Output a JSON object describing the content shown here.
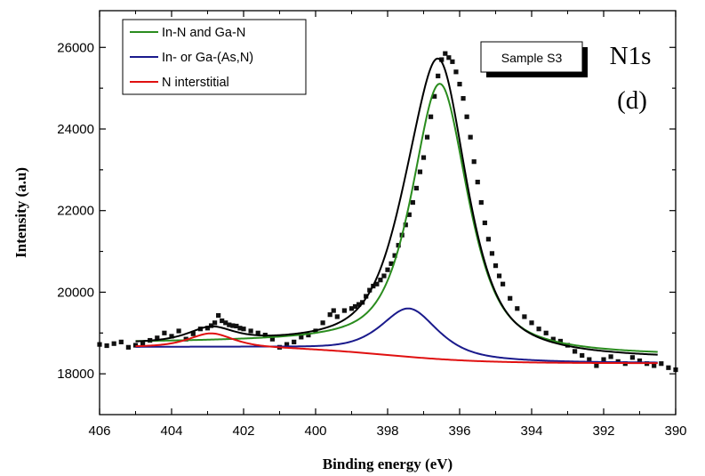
{
  "chart_data": {
    "type": "scatter",
    "title": "",
    "xlabel": "Binding energy (eV)",
    "ylabel": "Intensity (a.u)",
    "xlim": [
      406,
      390
    ],
    "ylim": [
      17000,
      26900
    ],
    "x_ticks": [
      406,
      404,
      402,
      400,
      398,
      396,
      394,
      392,
      390
    ],
    "y_ticks": [
      18000,
      20000,
      22000,
      24000,
      26000
    ],
    "x_reversed": true,
    "legend": {
      "position": "top-left",
      "entries": [
        {
          "label": "In-N and Ga-N",
          "color": "#2a8c1e"
        },
        {
          "label": "In- or Ga-(As,N)",
          "color": "#1a1a8c"
        },
        {
          "label": "N interstitial",
          "color": "#e01010"
        }
      ]
    },
    "annotations": {
      "sample_box": "Sample S3",
      "peak_label": "N1s",
      "panel_label": "(d)"
    },
    "fit_range": [
      405,
      390.5
    ],
    "background": {
      "left": 18650,
      "right": 18260,
      "center": 398.0,
      "width": 1.3
    },
    "series": [
      {
        "name": "In-N and Ga-N",
        "color": "#2a8c1e",
        "kind": "voigt",
        "center": 396.55,
        "height": 6600,
        "fwhm": 1.85,
        "base_extra_left": 100,
        "base_extra_right": 170
      },
      {
        "name": "In- or Ga-(As,N)",
        "color": "#1a1a8c",
        "kind": "voigt",
        "center": 397.4,
        "height": 1190,
        "fwhm": 1.9,
        "base_extra_left": 0,
        "base_extra_right": 0
      },
      {
        "name": "N interstitial",
        "color": "#e01010",
        "kind": "voigt",
        "center": 402.9,
        "height": 350,
        "fwhm": 1.5,
        "base_extra_left": 0,
        "base_extra_right": 0
      },
      {
        "name": "",
        "color": "#000000",
        "kind": "envelope"
      }
    ],
    "points_color": "#111111",
    "points": [
      [
        406.0,
        18720
      ],
      [
        405.8,
        18690
      ],
      [
        405.6,
        18740
      ],
      [
        405.4,
        18780
      ],
      [
        405.2,
        18650
      ],
      [
        405.0,
        18700
      ],
      [
        404.8,
        18750
      ],
      [
        404.6,
        18820
      ],
      [
        404.4,
        18880
      ],
      [
        404.2,
        19000
      ],
      [
        404.0,
        18920
      ],
      [
        403.8,
        19050
      ],
      [
        403.6,
        18850
      ],
      [
        403.4,
        18980
      ],
      [
        403.2,
        19100
      ],
      [
        403.0,
        19120
      ],
      [
        402.9,
        19180
      ],
      [
        402.8,
        19250
      ],
      [
        402.7,
        19430
      ],
      [
        402.6,
        19300
      ],
      [
        402.5,
        19250
      ],
      [
        402.4,
        19200
      ],
      [
        402.3,
        19180
      ],
      [
        402.2,
        19170
      ],
      [
        402.1,
        19120
      ],
      [
        402.0,
        19100
      ],
      [
        401.8,
        19050
      ],
      [
        401.6,
        19000
      ],
      [
        401.4,
        18950
      ],
      [
        401.2,
        18850
      ],
      [
        401.0,
        18650
      ],
      [
        400.8,
        18720
      ],
      [
        400.6,
        18780
      ],
      [
        400.4,
        18900
      ],
      [
        400.2,
        18950
      ],
      [
        400.0,
        19050
      ],
      [
        399.8,
        19250
      ],
      [
        399.6,
        19450
      ],
      [
        399.5,
        19550
      ],
      [
        399.4,
        19400
      ],
      [
        399.2,
        19550
      ],
      [
        399.0,
        19600
      ],
      [
        398.9,
        19650
      ],
      [
        398.8,
        19700
      ],
      [
        398.7,
        19750
      ],
      [
        398.6,
        19900
      ],
      [
        398.5,
        20050
      ],
      [
        398.4,
        20150
      ],
      [
        398.3,
        20200
      ],
      [
        398.2,
        20300
      ],
      [
        398.1,
        20400
      ],
      [
        398.0,
        20550
      ],
      [
        397.9,
        20700
      ],
      [
        397.8,
        20900
      ],
      [
        397.7,
        21150
      ],
      [
        397.6,
        21400
      ],
      [
        397.5,
        21650
      ],
      [
        397.4,
        21900
      ],
      [
        397.3,
        22200
      ],
      [
        397.2,
        22550
      ],
      [
        397.1,
        22950
      ],
      [
        397.0,
        23300
      ],
      [
        396.9,
        23800
      ],
      [
        396.8,
        24300
      ],
      [
        396.7,
        24800
      ],
      [
        396.6,
        25300
      ],
      [
        396.5,
        25700
      ],
      [
        396.4,
        25850
      ],
      [
        396.3,
        25750
      ],
      [
        396.2,
        25650
      ],
      [
        396.1,
        25400
      ],
      [
        396.0,
        25100
      ],
      [
        395.9,
        24750
      ],
      [
        395.8,
        24300
      ],
      [
        395.7,
        23800
      ],
      [
        395.6,
        23200
      ],
      [
        395.5,
        22700
      ],
      [
        395.4,
        22200
      ],
      [
        395.3,
        21700
      ],
      [
        395.2,
        21300
      ],
      [
        395.1,
        20950
      ],
      [
        395.0,
        20650
      ],
      [
        394.9,
        20400
      ],
      [
        394.8,
        20200
      ],
      [
        394.6,
        19850
      ],
      [
        394.4,
        19600
      ],
      [
        394.2,
        19400
      ],
      [
        394.0,
        19250
      ],
      [
        393.8,
        19100
      ],
      [
        393.6,
        19000
      ],
      [
        393.4,
        18850
      ],
      [
        393.2,
        18800
      ],
      [
        393.0,
        18700
      ],
      [
        392.8,
        18550
      ],
      [
        392.6,
        18450
      ],
      [
        392.4,
        18350
      ],
      [
        392.2,
        18200
      ],
      [
        392.0,
        18350
      ],
      [
        391.8,
        18420
      ],
      [
        391.6,
        18300
      ],
      [
        391.4,
        18250
      ],
      [
        391.2,
        18400
      ],
      [
        391.0,
        18320
      ],
      [
        390.8,
        18250
      ],
      [
        390.6,
        18200
      ],
      [
        390.4,
        18250
      ],
      [
        390.2,
        18150
      ],
      [
        390.0,
        18100
      ]
    ]
  }
}
